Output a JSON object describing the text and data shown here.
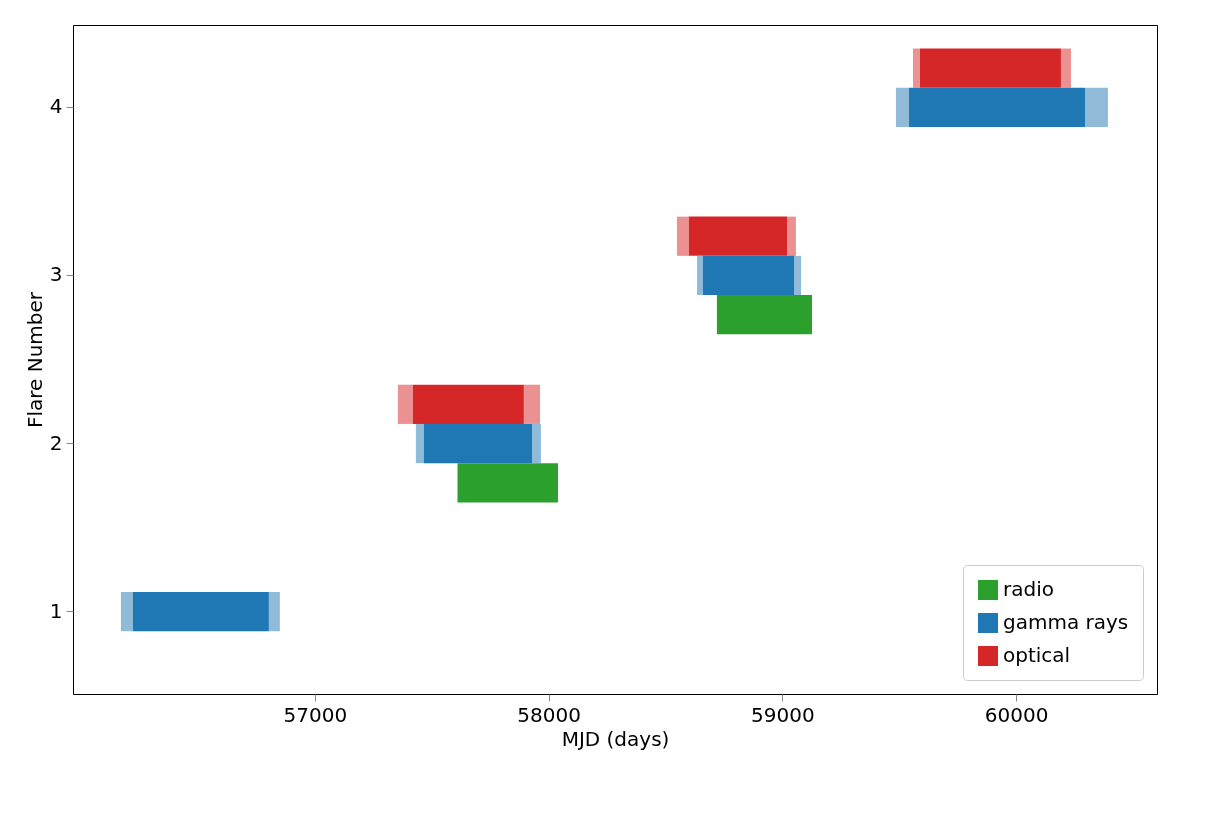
{
  "chart_data": {
    "type": "bar",
    "orientation": "horizontal",
    "categories": [
      "4",
      "3",
      "2",
      "1"
    ],
    "xlabel": "MJD (days)",
    "ylabel": "Flare Number",
    "xlim": [
      55965,
      60603
    ],
    "xticks": [
      57000,
      58000,
      59000,
      60000
    ],
    "legend": "bottom right",
    "series": [
      {
        "name": "radio",
        "color": "#2ca02c",
        "base": [
          null,
          58720,
          57610,
          null
        ],
        "values": [
          null,
          407,
          430,
          null
        ]
      },
      {
        "name": "gamma rays",
        "color": "#1f77b4",
        "base": [
          59542,
          58660,
          57466,
          56221
        ],
        "values": [
          753,
          390,
          463,
          582
        ]
      },
      {
        "color": "#8fbbd9",
        "base": [
          59486,
          58635,
          57432,
          56170
        ],
        "values": [
          56,
          25,
          34,
          51
        ]
      },
      {
        "color": "#8fbbd9",
        "base": [
          60295,
          59050,
          57929,
          56803
        ],
        "values": [
          98,
          30,
          38,
          47
        ]
      },
      {
        "name": "optical",
        "color": "#d62728",
        "base": [
          59589,
          58600,
          57419,
          null
        ],
        "values": [
          603,
          420,
          475,
          null
        ]
      },
      {
        "color": "#eb9192",
        "base": [
          59559,
          58549,
          57355,
          null
        ],
        "values": [
          30,
          51,
          64,
          null
        ]
      },
      {
        "color": "#eb9192",
        "base": [
          60192,
          59020,
          57894,
          null
        ],
        "values": [
          43,
          38,
          69,
          null
        ]
      }
    ]
  }
}
